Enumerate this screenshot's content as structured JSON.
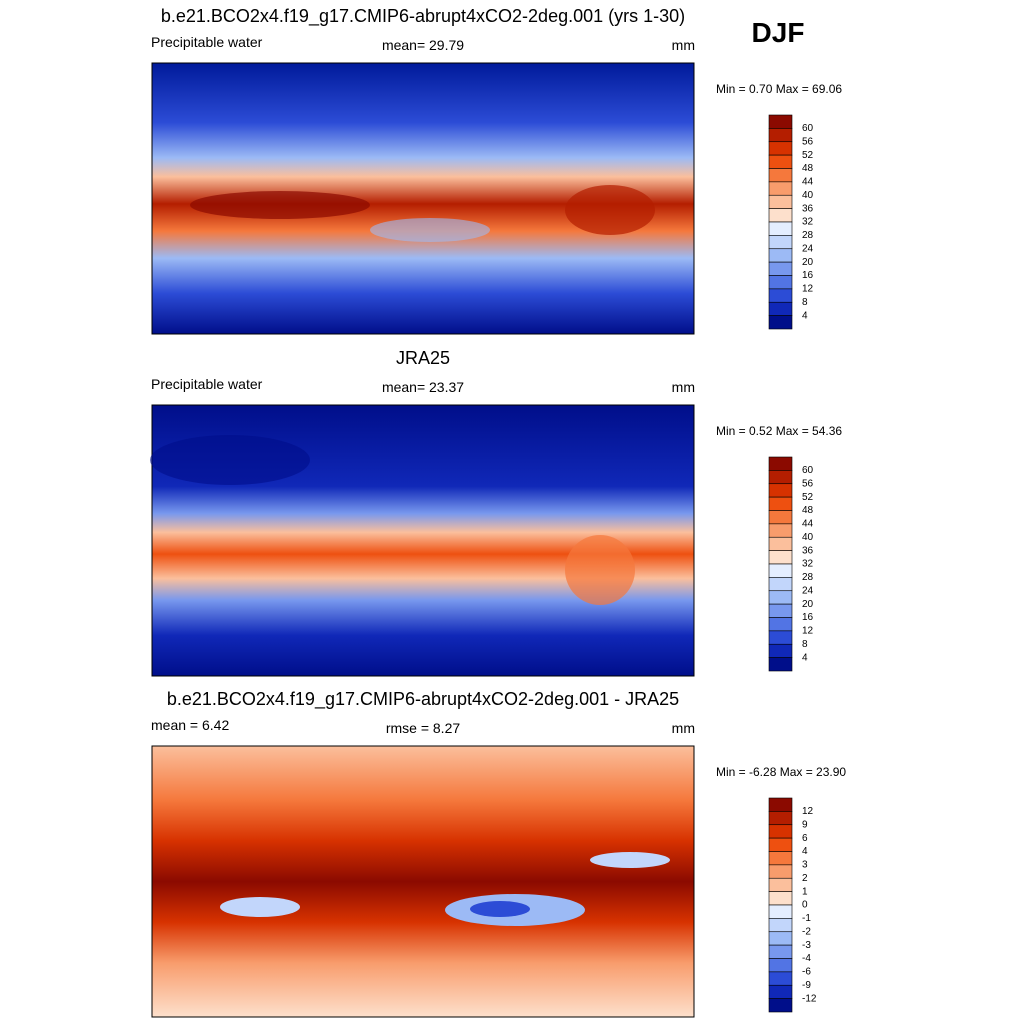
{
  "header": {
    "season": "DJF"
  },
  "panels": [
    {
      "title": "b.e21.BCO2x4.f19_g17.CMIP6-abrupt4xCO2-2deg.001 (yrs 1-30)",
      "left": "Precipitable water",
      "center": "mean=  29.79",
      "right": "mm",
      "minmax": "Min =   0.70 Max =  69.06",
      "colorbar": [
        60,
        56,
        52,
        48,
        44,
        40,
        36,
        32,
        28,
        24,
        20,
        16,
        12,
        8,
        4
      ]
    },
    {
      "title": "JRA25",
      "left": "Precipitable water",
      "center": "mean=  23.37",
      "right": "mm",
      "minmax": "Min =   0.52 Max =  54.36",
      "colorbar": [
        60,
        56,
        52,
        48,
        44,
        40,
        36,
        32,
        28,
        24,
        20,
        16,
        12,
        8,
        4
      ]
    },
    {
      "title": "b.e21.BCO2x4.f19_g17.CMIP6-abrupt4xCO2-2deg.001 - JRA25",
      "left": "mean =   6.42",
      "center": "rmse =   8.27",
      "right": "mm",
      "minmax": "Min =  -6.28 Max =  23.90",
      "colorbar": [
        12,
        9,
        6,
        4,
        3,
        2,
        1,
        0,
        -1,
        -2,
        -3,
        -4,
        -6,
        -9,
        -12
      ]
    }
  ]
}
